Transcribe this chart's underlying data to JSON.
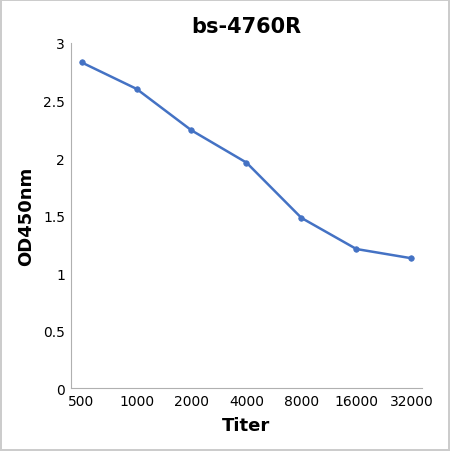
{
  "title": "bs-4760R",
  "xlabel": "Titer",
  "ylabel": "OD450nm",
  "x_values": [
    0,
    1,
    2,
    3,
    4,
    5,
    6
  ],
  "y_values": [
    2.83,
    2.6,
    2.24,
    1.96,
    1.48,
    1.21,
    1.13
  ],
  "line_color": "#4472C4",
  "marker": "o",
  "marker_size": 4,
  "marker_edge_width": 0.5,
  "line_width": 1.8,
  "ylim": [
    0,
    3.0
  ],
  "yticks": [
    0,
    0.5,
    1.0,
    1.5,
    2.0,
    2.5,
    3.0
  ],
  "ytick_labels": [
    "0",
    "0.5",
    "1",
    "1.5",
    "2",
    "2.5",
    "3"
  ],
  "xtick_labels": [
    "500",
    "1000",
    "2000",
    "4000",
    "8000",
    "16000",
    "32000"
  ],
  "title_fontsize": 15,
  "axis_label_fontsize": 13,
  "tick_fontsize": 10,
  "background_color": "#ffffff",
  "figure_size": [
    4.5,
    4.52
  ],
  "dpi": 100
}
